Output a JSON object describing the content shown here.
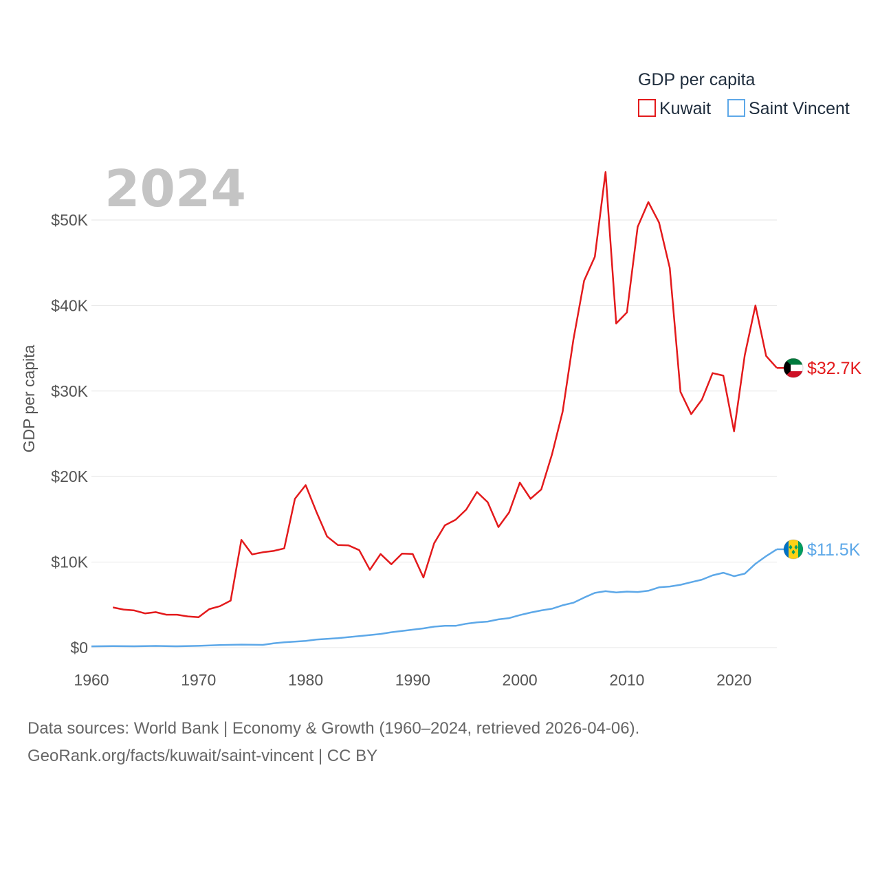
{
  "chart_data": {
    "type": "line",
    "title": "GDP per capita",
    "current_year_label": "2024",
    "ylabel": "GDP per capita",
    "xlabel": "",
    "xlim": [
      1960,
      2024
    ],
    "ylim": [
      0,
      56000
    ],
    "x_ticks": [
      1960,
      1970,
      1980,
      1990,
      2000,
      2010,
      2020
    ],
    "x_tick_labels": [
      "1960",
      "1970",
      "1980",
      "1990",
      "2000",
      "2010",
      "2020"
    ],
    "y_ticks": [
      0,
      10000,
      20000,
      30000,
      40000,
      50000
    ],
    "y_tick_labels": [
      "$0",
      "$10K",
      "$20K",
      "$30K",
      "$40K",
      "$50K"
    ],
    "grid": "horizontal",
    "legend_position": "top-right",
    "series": [
      {
        "name": "Kuwait",
        "color": "#e31a1c",
        "end_label": "$32.7K",
        "flag": "kuwait-flag",
        "x": [
          1962,
          1963,
          1964,
          1965,
          1966,
          1967,
          1968,
          1969,
          1970,
          1971,
          1972,
          1973,
          1974,
          1975,
          1976,
          1977,
          1978,
          1979,
          1980,
          1981,
          1982,
          1983,
          1984,
          1985,
          1986,
          1987,
          1988,
          1989,
          1990,
          1991,
          1992,
          1993,
          1994,
          1995,
          1996,
          1997,
          1998,
          1999,
          2000,
          2001,
          2002,
          2003,
          2004,
          2005,
          2006,
          2007,
          2008,
          2009,
          2010,
          2011,
          2012,
          2013,
          2014,
          2015,
          2016,
          2017,
          2018,
          2019,
          2020,
          2021,
          2022,
          2023,
          2024
        ],
        "values": [
          4700,
          4450,
          4350,
          4000,
          4150,
          3850,
          3850,
          3650,
          3550,
          4500,
          4850,
          5500,
          12600,
          10900,
          11150,
          11300,
          11600,
          17400,
          19000,
          15900,
          13000,
          12000,
          11950,
          11400,
          9100,
          10950,
          9750,
          11000,
          10950,
          8200,
          12200,
          14300,
          14950,
          16150,
          18200,
          17000,
          14100,
          15800,
          19300,
          17400,
          18500,
          22600,
          27600,
          36000,
          42900,
          45700,
          55600,
          37900,
          39200,
          49200,
          52100,
          49700,
          44400,
          29900,
          27300,
          29000,
          32100,
          31800,
          25300,
          34200,
          40000,
          34100,
          32700
        ]
      },
      {
        "name": "Saint Vincent",
        "color": "#5da8e8",
        "end_label": "$11.5K",
        "flag": "saint-vincent-flag",
        "x": [
          1960,
          1962,
          1964,
          1966,
          1968,
          1970,
          1972,
          1974,
          1976,
          1977,
          1978,
          1980,
          1981,
          1983,
          1985,
          1987,
          1988,
          1990,
          1991,
          1992,
          1993,
          1994,
          1995,
          1996,
          1997,
          1998,
          1999,
          2000,
          2001,
          2002,
          2003,
          2004,
          2005,
          2006,
          2007,
          2008,
          2009,
          2010,
          2011,
          2012,
          2013,
          2014,
          2015,
          2016,
          2017,
          2018,
          2019,
          2020,
          2021,
          2022,
          2023,
          2024
        ],
        "values": [
          150,
          180,
          160,
          200,
          160,
          210,
          300,
          350,
          320,
          500,
          620,
          780,
          950,
          1100,
          1350,
          1600,
          1800,
          2100,
          2250,
          2450,
          2550,
          2550,
          2800,
          2950,
          3050,
          3300,
          3450,
          3800,
          4100,
          4350,
          4550,
          4950,
          5250,
          5850,
          6400,
          6600,
          6450,
          6550,
          6500,
          6650,
          7050,
          7150,
          7350,
          7650,
          7950,
          8450,
          8750,
          8350,
          8650,
          9800,
          10700,
          11500
        ]
      }
    ]
  },
  "footer": {
    "line1": "Data sources: World Bank | Economy & Growth (1960–2024, retrieved 2026-04-06).",
    "line2": "GeoRank.org/facts/kuwait/saint-vincent | CC BY"
  }
}
